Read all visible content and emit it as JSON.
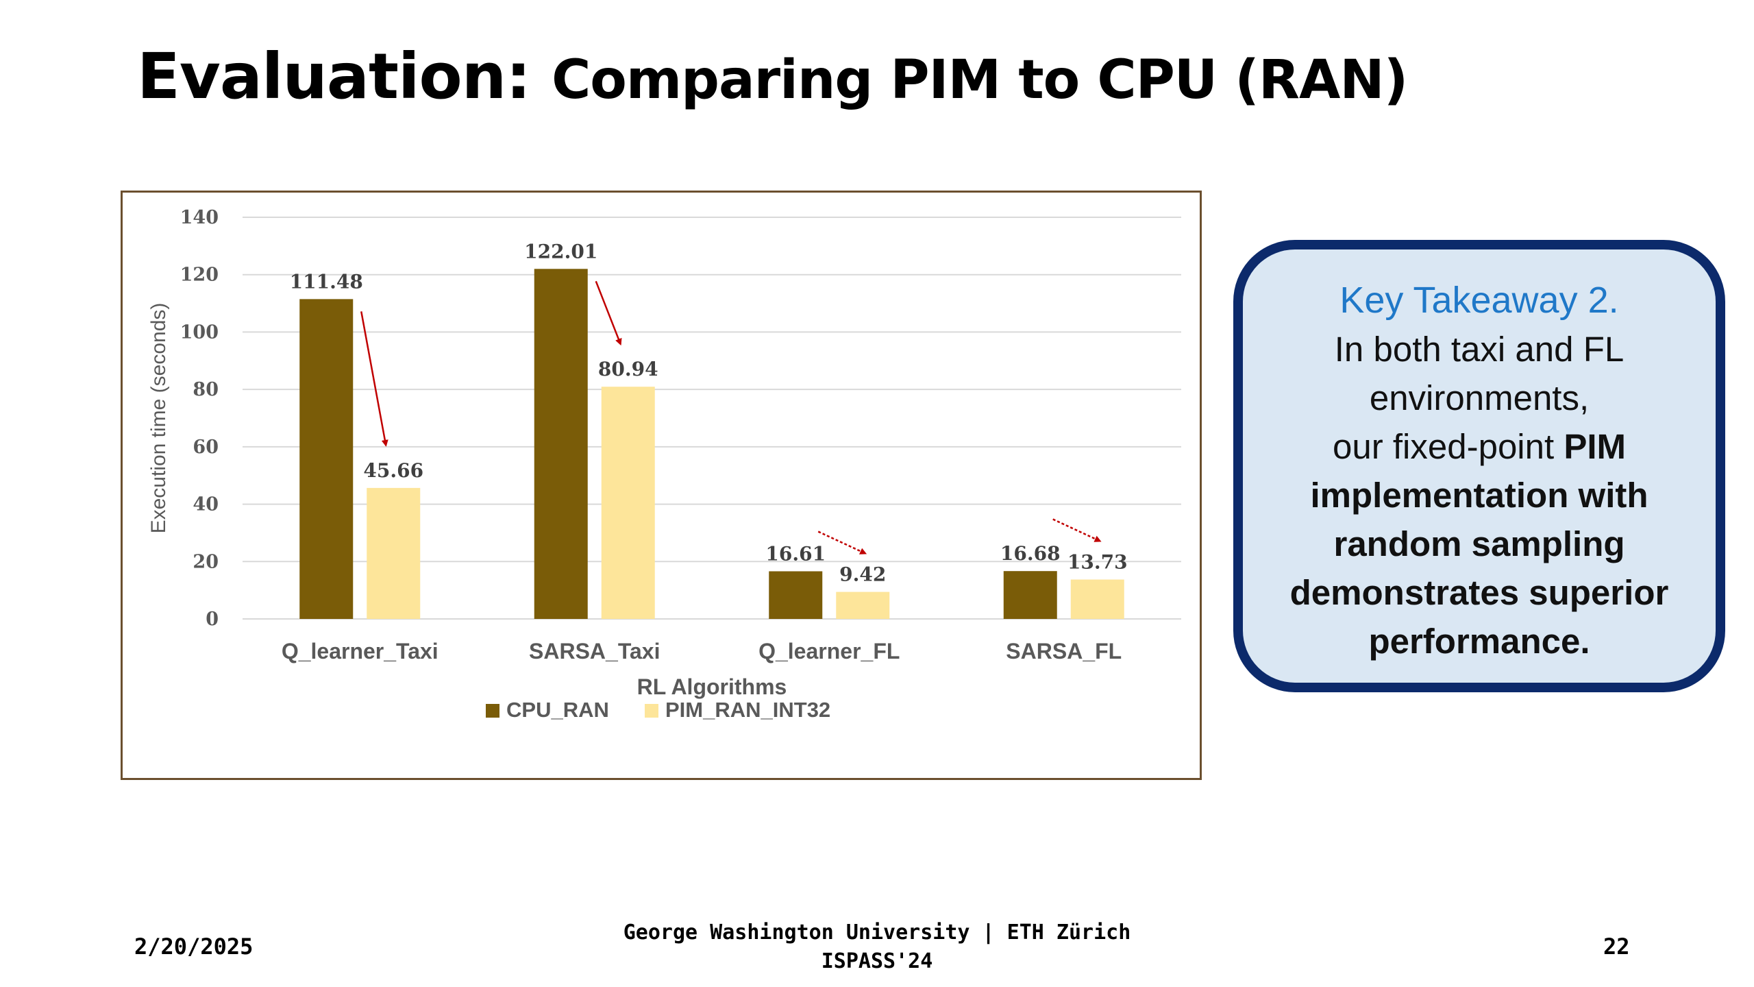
{
  "slide": {
    "title_main": "Evaluation:",
    "title_sub": "Comparing PIM to CPU (RAN)"
  },
  "takeaway": {
    "heading": "Key Takeaway 2.",
    "line1": "In both taxi and FL",
    "line2": "environments,",
    "line3_prefix": "our fixed-point",
    "line3_bold": "PIM",
    "line4": "implementation with",
    "line5": "random sampling",
    "line6": "demonstrates superior",
    "line7": "performance."
  },
  "footer": {
    "date": "2/20/2025",
    "affiliation": "George Washington University | ETH Zürich",
    "venue": "ISPASS'24",
    "page_number": "22"
  },
  "chart_data": {
    "type": "bar",
    "title": "",
    "xlabel": "RL Algorithms",
    "ylabel": "Execution time (seconds)",
    "ylim": [
      0,
      140
    ],
    "yticks": [
      0,
      20,
      40,
      60,
      80,
      100,
      120,
      140
    ],
    "categories": [
      "Q_learner_Taxi",
      "SARSA_Taxi",
      "Q_learner_FL",
      "SARSA_FL"
    ],
    "series": [
      {
        "name": "CPU_RAN",
        "values": [
          111.48,
          122.01,
          16.61,
          16.68
        ],
        "labels": [
          "111.48",
          "122.01",
          "16.61",
          "16.68"
        ],
        "color": "#7a5c08"
      },
      {
        "name": "PIM_RAN_INT32",
        "values": [
          45.66,
          80.94,
          9.42,
          13.73
        ],
        "labels": [
          "45.66",
          "80.94",
          "9.42",
          "13.73"
        ],
        "color": "#fde59a"
      }
    ],
    "grid": true,
    "legend": "bottom",
    "arrow_color": "#c00000",
    "gridline_color": "#d9d9d9",
    "axis_text_color": "#595959"
  }
}
